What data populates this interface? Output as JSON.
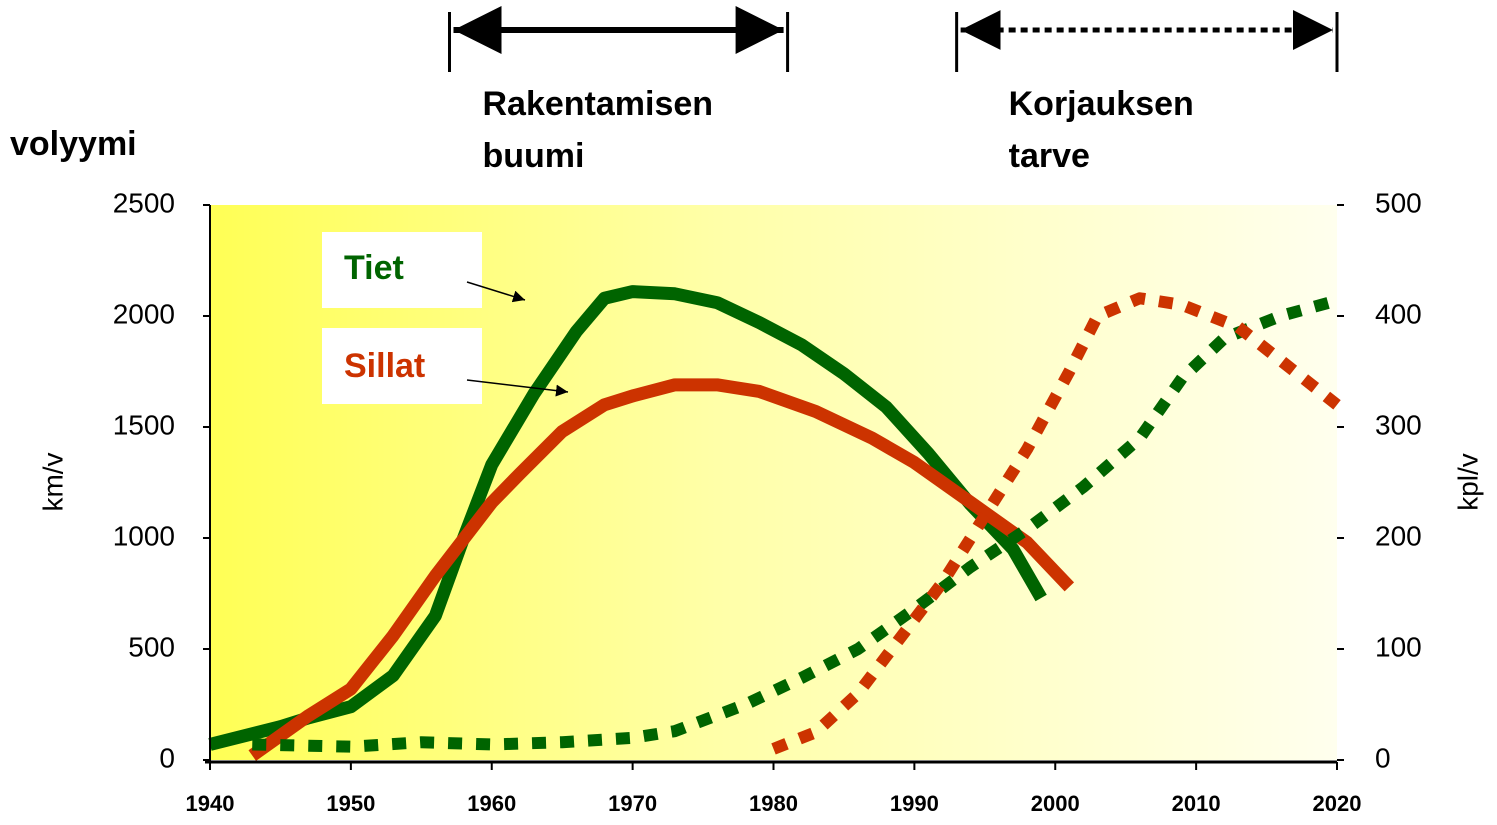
{
  "chart_data": {
    "type": "line",
    "y_label": "volyymi",
    "y_axis_label": "km/v",
    "y2_axis_label": "kpl/v",
    "xlim": [
      1940,
      2020
    ],
    "xticks": [
      1940,
      1950,
      1960,
      1970,
      1980,
      1990,
      2000,
      2010,
      2020
    ],
    "ylim": [
      0,
      2500
    ],
    "yticks": [
      0,
      500,
      1000,
      1500,
      2000,
      2500
    ],
    "y2lim": [
      0,
      500
    ],
    "y2ticks": [
      0,
      100,
      200,
      300,
      400,
      500
    ],
    "annotations": [
      {
        "lines": [
          "Rakentamisen",
          "buumi"
        ],
        "x": [
          1957,
          1981
        ],
        "style": "solid"
      },
      {
        "lines": [
          "Korjauksen",
          "tarve"
        ],
        "x": [
          1993,
          2020
        ],
        "style": "dotted"
      }
    ],
    "series": [
      {
        "name": "Tiet",
        "color": "#006400",
        "style": "solid",
        "x": [
          1940,
          1945,
          1947,
          1950,
          1953,
          1956,
          1958,
          1960,
          1963,
          1966,
          1968,
          1970,
          1973,
          1976,
          1979,
          1982,
          1985,
          1988,
          1991,
          1994,
          1997,
          1999
        ],
        "values": [
          70,
          150,
          190,
          240,
          380,
          650,
          1000,
          1330,
          1650,
          1930,
          2080,
          2110,
          2100,
          2060,
          1970,
          1870,
          1740,
          1590,
          1380,
          1150,
          950,
          730
        ]
      },
      {
        "name": "Sillat",
        "color": "#cc3300",
        "style": "solid",
        "axis": "y2",
        "x": [
          1943,
          1947,
          1950,
          1953,
          1956,
          1960,
          1962,
          1965,
          1968,
          1970,
          1973,
          1976,
          1979,
          1983,
          1987,
          1990,
          1994,
          1998,
          2001
        ],
        "values": [
          4,
          40,
          64,
          112,
          166,
          232,
          258,
          296,
          320,
          328,
          338,
          338,
          332,
          314,
          290,
          268,
          232,
          196,
          156
        ]
      },
      {
        "color": "#006400",
        "style": "dotted",
        "x": [
          1943,
          1950,
          1955,
          1960,
          1965,
          1970,
          1973,
          1978,
          1982,
          1986,
          1990,
          1994,
          1998,
          2002,
          2006,
          2009,
          2012,
          2016,
          2020
        ],
        "values": [
          70,
          60,
          80,
          70,
          80,
          100,
          130,
          250,
          370,
          500,
          680,
          870,
          1040,
          1230,
          1450,
          1720,
          1900,
          2000,
          2070
        ]
      },
      {
        "color": "#cc3300",
        "style": "dotted",
        "axis": "y2",
        "x": [
          1980,
          1983,
          1986,
          1989,
          1992,
          1995,
          1998,
          2001,
          2003,
          2006,
          2009,
          2013,
          2016,
          2020
        ],
        "values": [
          10,
          25,
          60,
          110,
          160,
          220,
          280,
          350,
          400,
          416,
          410,
          390,
          360,
          320
        ]
      }
    ]
  }
}
